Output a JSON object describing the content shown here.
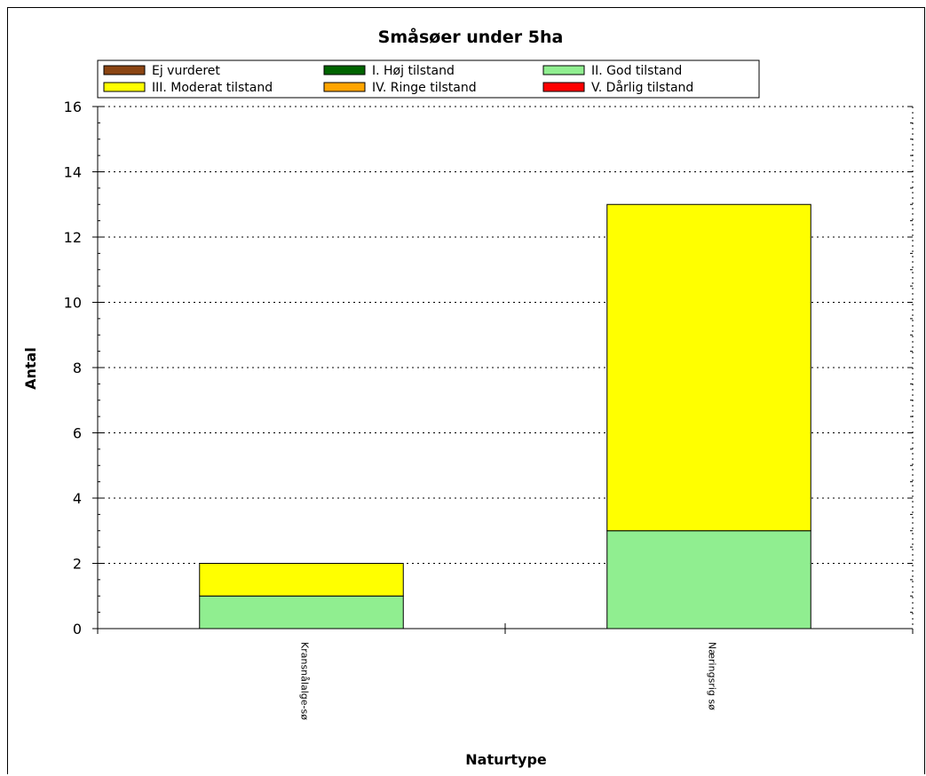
{
  "chart_data": {
    "type": "bar",
    "stacked": true,
    "title": "Småsøer under 5ha",
    "xlabel": "Naturtype",
    "ylabel": "Antal",
    "ylim": [
      0,
      16
    ],
    "yticks": [
      0,
      2,
      4,
      6,
      8,
      10,
      12,
      14,
      16
    ],
    "grid": true,
    "legend_position": "top",
    "categories": [
      "Kransnålalge-sø",
      "Næringsrig sø"
    ],
    "series": [
      {
        "name": "Ej vurderet",
        "color": "#8b4513",
        "values": [
          0,
          0
        ]
      },
      {
        "name": "I. Høj tilstand",
        "color": "#006400",
        "values": [
          0,
          0
        ]
      },
      {
        "name": "II. God tilstand",
        "color": "#90ee90",
        "values": [
          1,
          3
        ]
      },
      {
        "name": "III. Moderat tilstand",
        "color": "#ffff00",
        "values": [
          1,
          10
        ]
      },
      {
        "name": "IV. Ringe tilstand",
        "color": "#ffa500",
        "values": [
          0,
          0
        ]
      },
      {
        "name": "V. Dårlig tilstand",
        "color": "#ff0000",
        "values": [
          0,
          0
        ]
      }
    ]
  }
}
